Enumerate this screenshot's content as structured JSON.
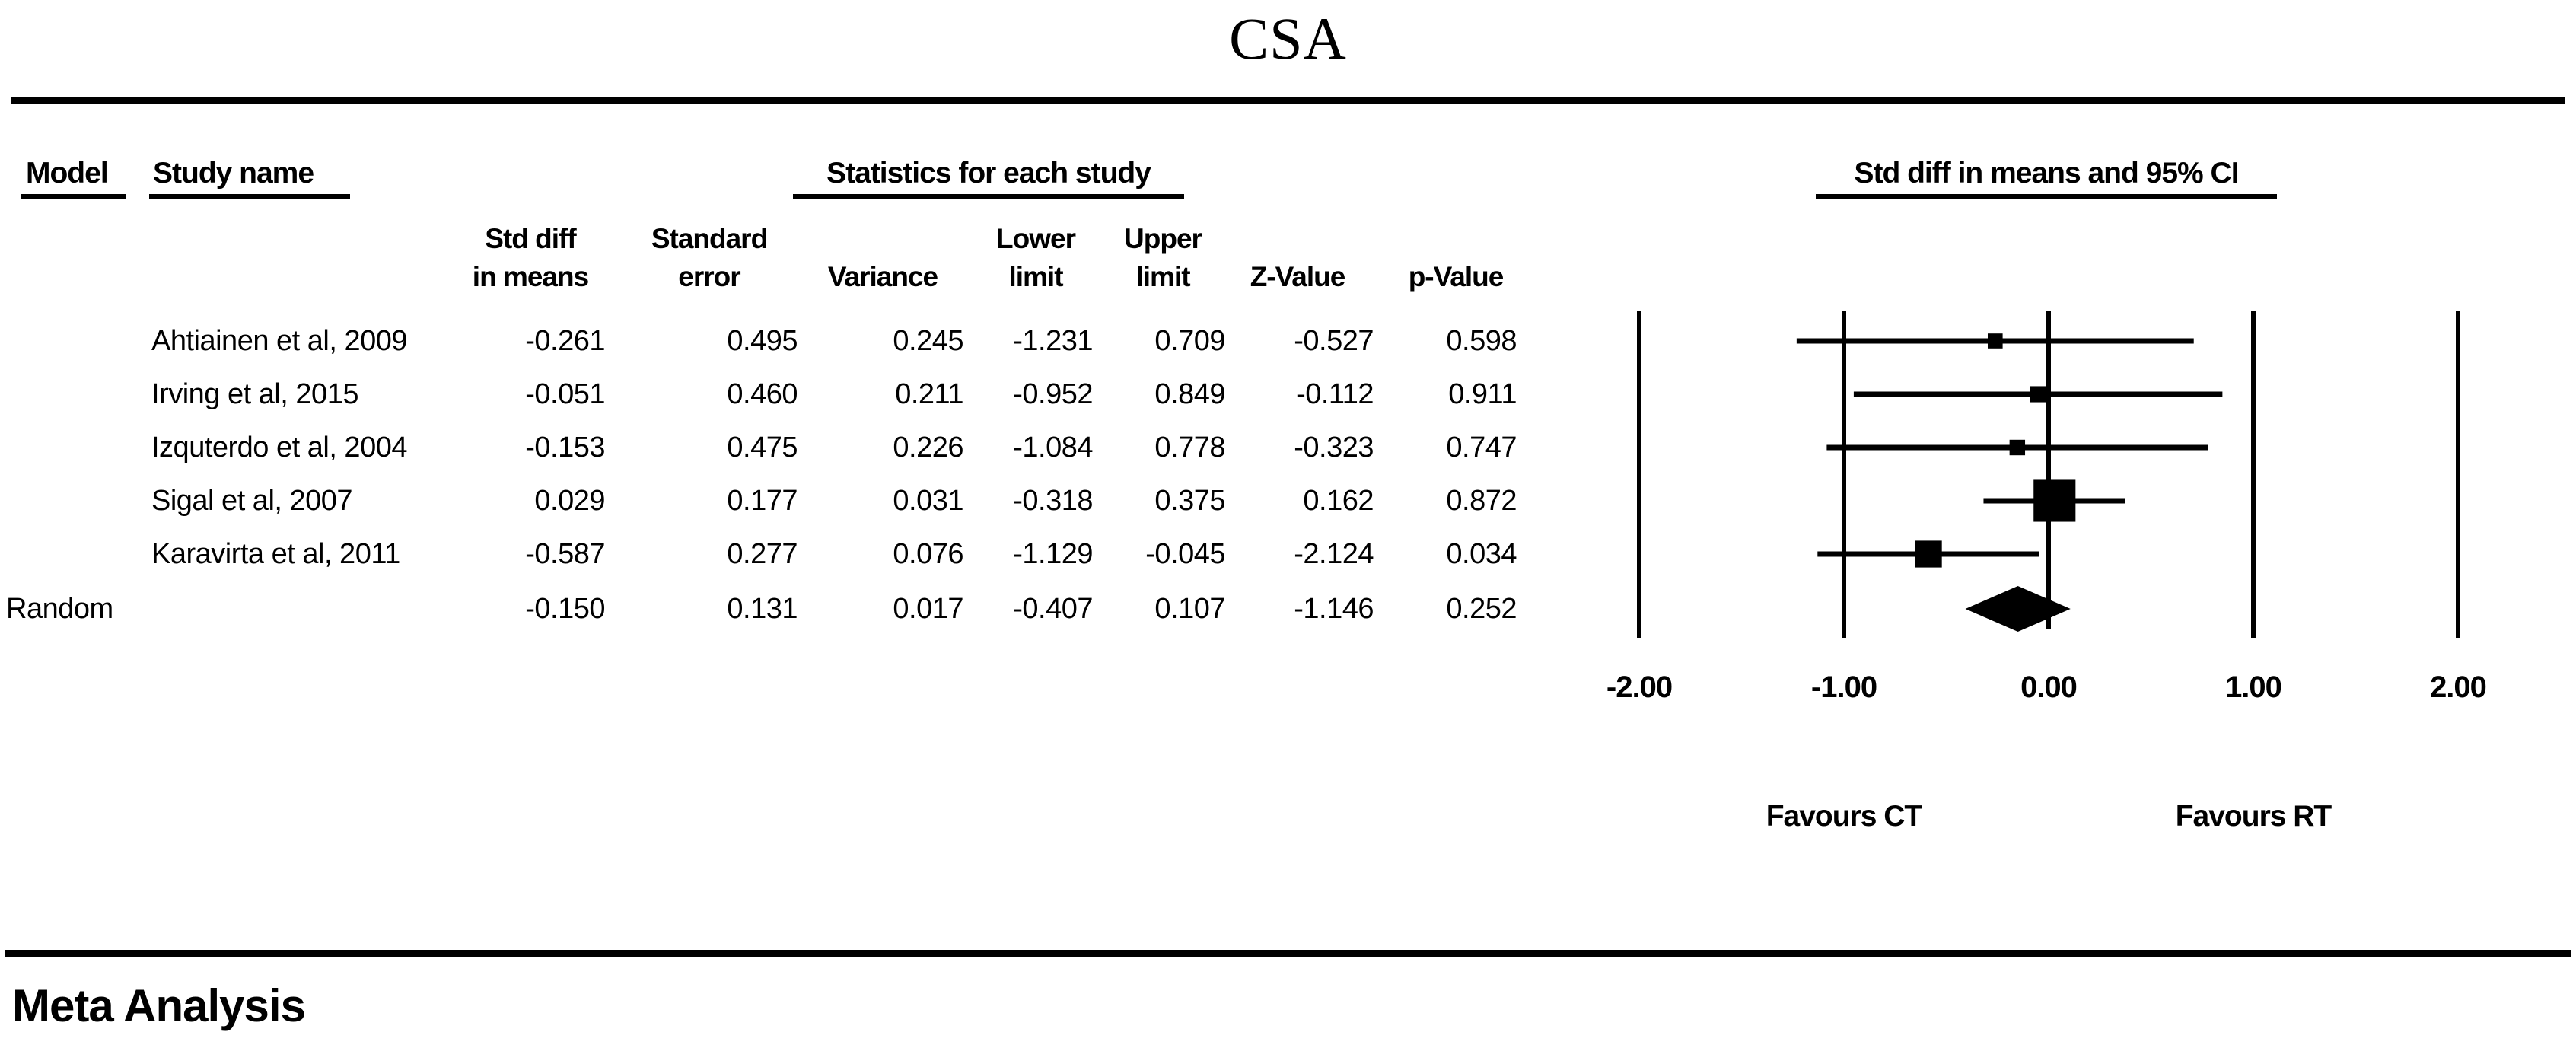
{
  "title": "CSA",
  "footer": "Meta Analysis",
  "header_groups": {
    "model": "Model",
    "study_name": "Study name",
    "statistics": "Statistics for each study",
    "plot": "Std diff in means and 95% CI"
  },
  "stat_columns": [
    {
      "line1": "Std diff",
      "line2": "in means"
    },
    {
      "line1": "Standard",
      "line2": "error"
    },
    {
      "line1": "",
      "line2": "Variance"
    },
    {
      "line1": "Lower",
      "line2": "limit"
    },
    {
      "line1": "Upper",
      "line2": "limit"
    },
    {
      "line1": "",
      "line2": "Z-Value"
    },
    {
      "line1": "",
      "line2": "p-Value"
    }
  ],
  "rows": [
    {
      "model": "",
      "study": "Ahtiainen et al, 2009",
      "values": [
        "-0.261",
        "0.495",
        "0.245",
        "-1.231",
        "0.709",
        "-0.527",
        "0.598"
      ]
    },
    {
      "model": "",
      "study": "Irving et al, 2015",
      "values": [
        "-0.051",
        "0.460",
        "0.211",
        "-0.952",
        "0.849",
        "-0.112",
        "0.911"
      ]
    },
    {
      "model": "",
      "study": "Izquterdo et al, 2004",
      "values": [
        "-0.153",
        "0.475",
        "0.226",
        "-1.084",
        "0.778",
        "-0.323",
        "0.747"
      ]
    },
    {
      "model": "",
      "study": "Sigal et al, 2007",
      "values": [
        "0.029",
        "0.177",
        "0.031",
        "-0.318",
        "0.375",
        "0.162",
        "0.872"
      ]
    },
    {
      "model": "",
      "study": "Karavirta et al, 2011",
      "values": [
        "-0.587",
        "0.277",
        "0.076",
        "-1.129",
        "-0.045",
        "-2.124",
        "0.034"
      ]
    },
    {
      "model": "Random",
      "study": "",
      "values": [
        "-0.150",
        "0.131",
        "0.017",
        "-0.407",
        "0.107",
        "-1.146",
        "0.252"
      ]
    }
  ],
  "chart_data": {
    "type": "forest",
    "title": "CSA",
    "effect_measure": "Std diff in means",
    "axis_header": "Std diff in means and 95% CI",
    "xlim": [
      -2,
      2
    ],
    "tick_values": [
      -2,
      -1,
      0,
      1,
      2
    ],
    "tick_labels": [
      "-2.00",
      "-1.00",
      "0.00",
      "1.00",
      "2.00"
    ],
    "favours_left": "Favours CT",
    "favours_right": "Favours RT",
    "grid": "vertical-lines-at-ticks",
    "marker_color": "#000000",
    "studies": [
      {
        "name": "Ahtiainen et al, 2009",
        "point": -0.261,
        "lower": -1.231,
        "upper": 0.709,
        "variance": 0.245
      },
      {
        "name": "Irving et al, 2015",
        "point": -0.051,
        "lower": -0.952,
        "upper": 0.849,
        "variance": 0.211
      },
      {
        "name": "Izquterdo et al, 2004",
        "point": -0.153,
        "lower": -1.084,
        "upper": 0.778,
        "variance": 0.226
      },
      {
        "name": "Sigal et al, 2007",
        "point": 0.029,
        "lower": -0.318,
        "upper": 0.375,
        "variance": 0.031
      },
      {
        "name": "Karavirta et al, 2011",
        "point": -0.587,
        "lower": -1.129,
        "upper": -0.045,
        "variance": 0.076
      }
    ],
    "summary": {
      "name": "Random",
      "point": -0.15,
      "lower": -0.407,
      "upper": 0.107
    }
  }
}
